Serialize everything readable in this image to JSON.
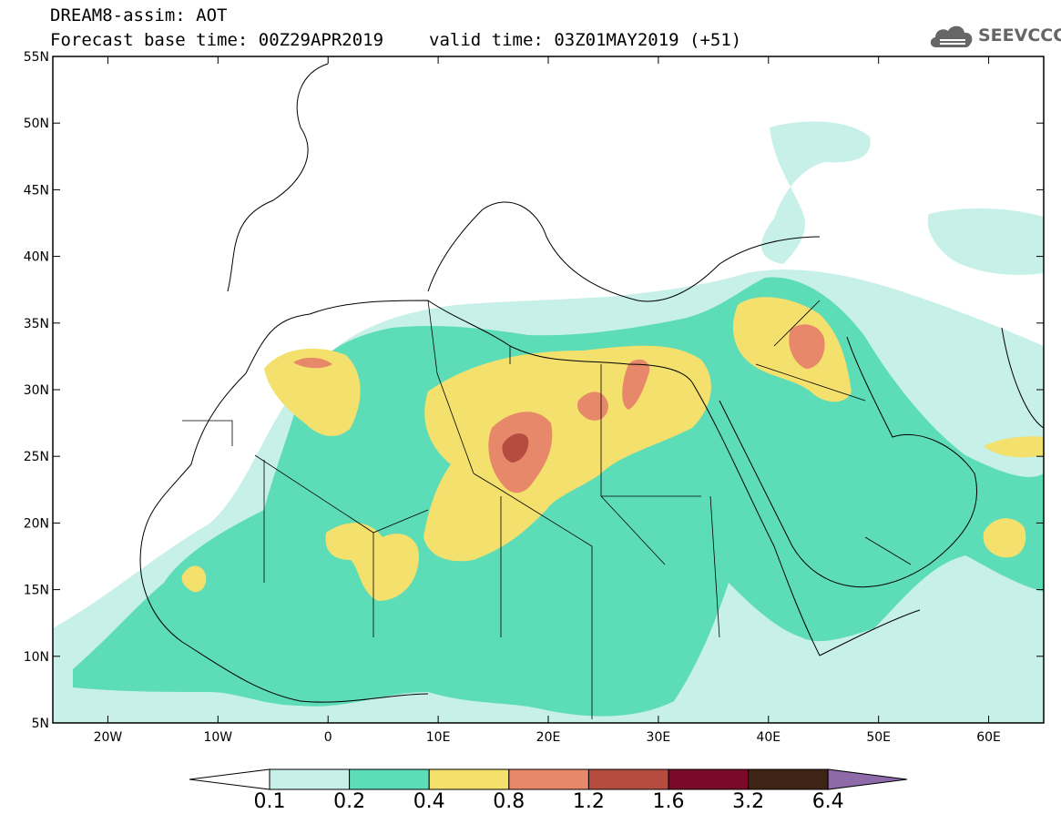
{
  "title": {
    "line1": "DREAM8-assim: AOT",
    "base_time": "Forecast base time: 00Z29APR2019",
    "valid_time": "valid time: 03Z01MAY2019 (+51)"
  },
  "logo": {
    "text": "SEEVCCC",
    "icon": "cloud-icon"
  },
  "map": {
    "lat_ticks": [
      "55N",
      "50N",
      "45N",
      "40N",
      "35N",
      "30N",
      "25N",
      "20N",
      "15N",
      "10N",
      "5N"
    ],
    "lon_ticks": [
      "20W",
      "10W",
      "0",
      "10E",
      "20E",
      "30E",
      "40E",
      "50E",
      "60E"
    ],
    "lon_range": [
      -25,
      65
    ],
    "lat_range": [
      5,
      55
    ]
  },
  "colorbar": {
    "labels": [
      "0.1",
      "0.2",
      "0.4",
      "0.8",
      "1.2",
      "1.6",
      "3.2",
      "6.4"
    ],
    "colors": [
      "#c6f0e8",
      "#5ddcb8",
      "#f4e06c",
      "#e8886a",
      "#b44c40",
      "#7a0a28",
      "#3e2414",
      "#8e6ba8"
    ],
    "under_color": "#ffffff"
  }
}
